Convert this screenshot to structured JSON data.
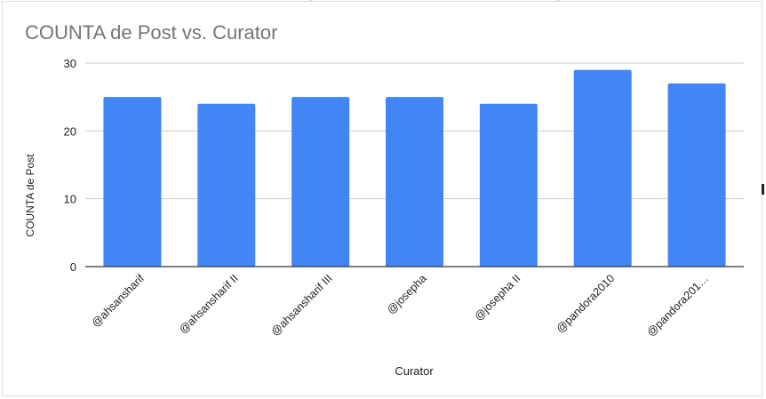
{
  "chart_data": {
    "type": "bar",
    "title": "COUNTA de Post vs. Curator",
    "xlabel": "Curator",
    "ylabel": "COUNTA de Post",
    "categories": [
      "@ahsansharif",
      "@ahsansharif II",
      "@ahsansharif III",
      "@josepha",
      "@josepha II",
      "@pandora2010",
      "@pandora201…"
    ],
    "values": [
      25,
      24,
      25,
      25,
      24,
      29,
      27
    ],
    "ylim": [
      0,
      30
    ],
    "yticks": [
      "0",
      "10",
      "20",
      "30"
    ],
    "grid": true,
    "legend": "none",
    "bar_color": "#4285f4"
  }
}
